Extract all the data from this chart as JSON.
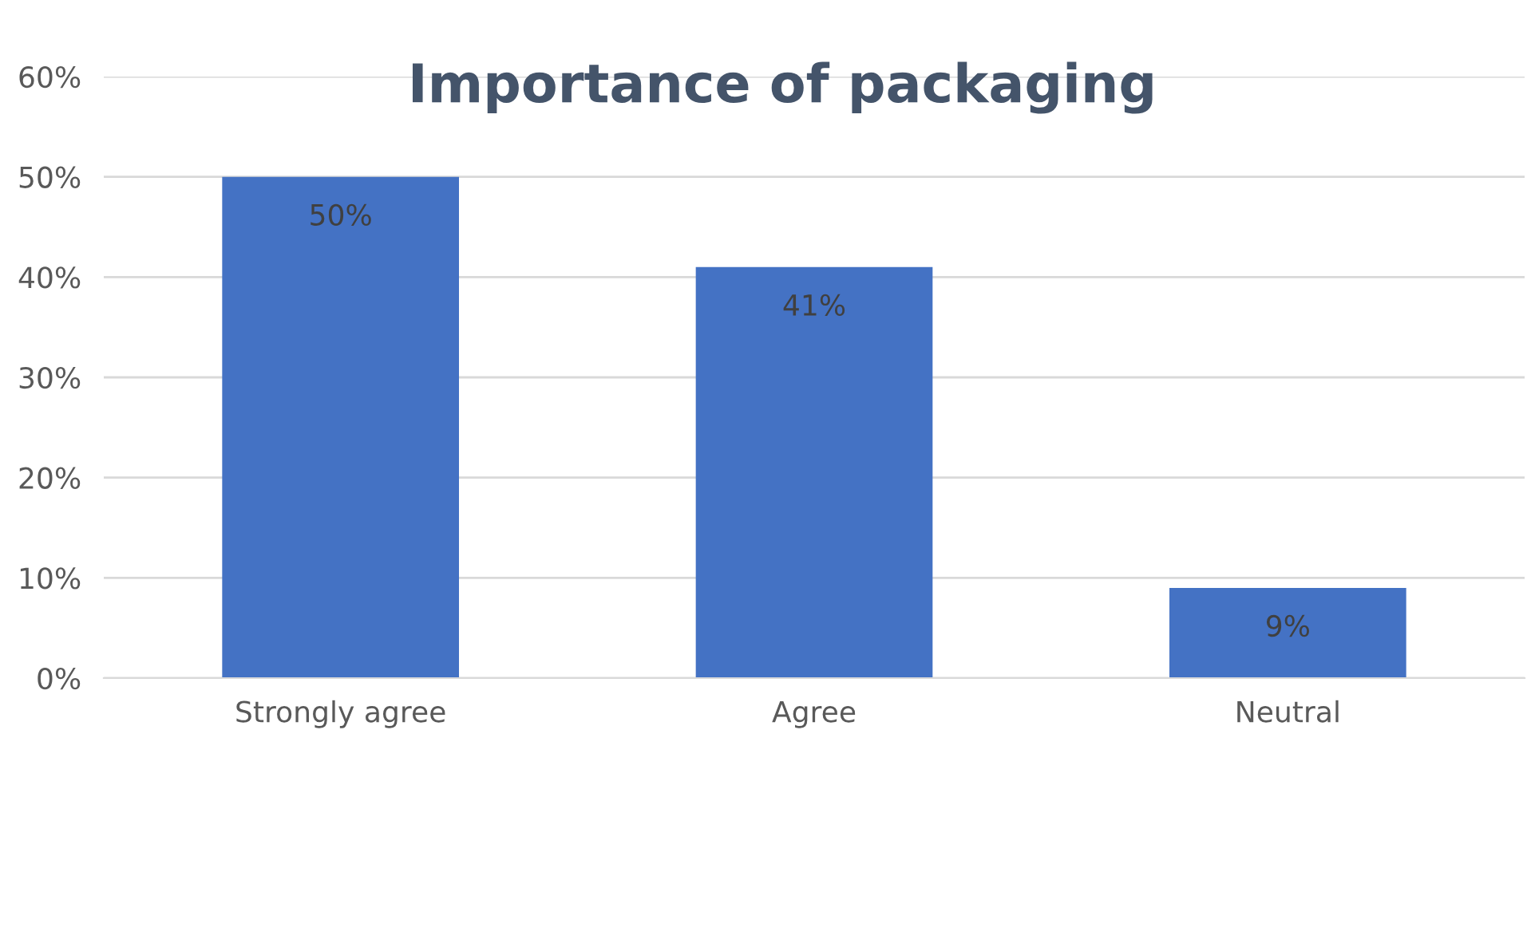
{
  "chart_data": {
    "type": "bar",
    "title": "Importance of packaging",
    "categories": [
      "Strongly agree",
      "Agree",
      "Neutral"
    ],
    "values": [
      50,
      41,
      9
    ],
    "value_labels": [
      "50%",
      "41%",
      "9%"
    ],
    "color": "#4472c4",
    "ylim": [
      0,
      60
    ],
    "yticks": [
      {
        "value": 0,
        "label": "0%"
      },
      {
        "value": 10,
        "label": "10%"
      },
      {
        "value": 20,
        "label": "20%"
      },
      {
        "value": 30,
        "label": "30%"
      },
      {
        "value": 40,
        "label": "40%"
      },
      {
        "value": 50,
        "label": "50%"
      },
      {
        "value": 60,
        "label": "60%"
      }
    ],
    "grid": "y",
    "legend": false
  }
}
